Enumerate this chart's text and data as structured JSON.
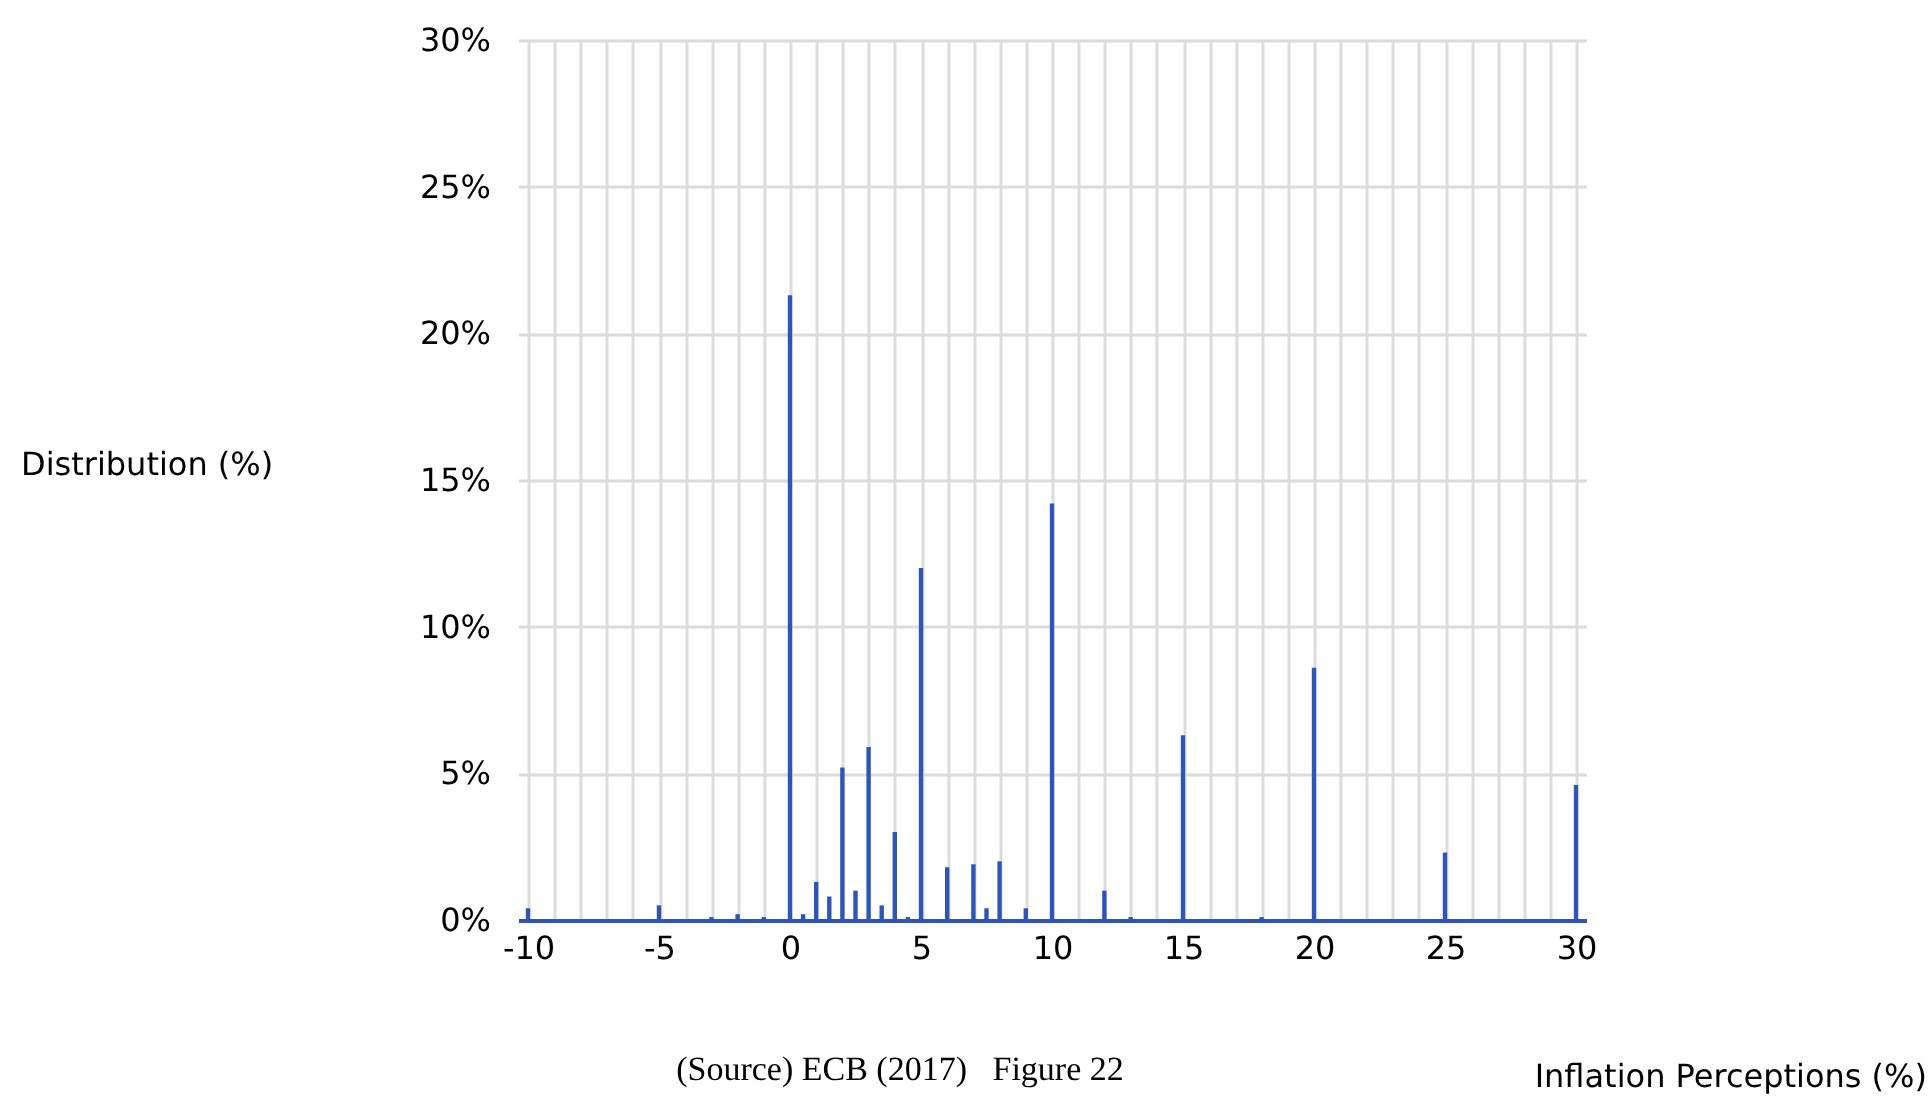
{
  "chart_data": {
    "type": "bar",
    "xlabel": "Inflation Perceptions (%)",
    "ylabel": "Distribution (%)",
    "annotations": [
      "(Source) ECB (2017)   Figure 22"
    ],
    "x": [
      -10,
      -5,
      -3,
      -2,
      -1,
      0,
      0.5,
      1,
      1.5,
      2,
      2.5,
      3,
      3.5,
      4,
      4.5,
      5,
      6,
      7,
      7.5,
      8,
      9,
      10,
      12,
      13,
      15,
      18,
      20,
      25,
      30
    ],
    "series": [
      {
        "color": "#2f55b5",
        "values": [
          0.4,
          0.5,
          0.1,
          0.2,
          0.1,
          21.3,
          0.2,
          1.3,
          0.8,
          5.2,
          1.0,
          5.9,
          0.5,
          3.0,
          0.1,
          12.0,
          1.8,
          1.9,
          0.4,
          2.0,
          0.4,
          14.2,
          1.0,
          0.1,
          6.3,
          0.1,
          8.6,
          2.3,
          4.6
        ]
      }
    ],
    "xlim": [
      -10,
      30
    ],
    "xticks": [
      -10,
      {
        "value": -9,
        "label": null
      },
      {
        "value": -8,
        "label": null
      },
      {
        "value": -7,
        "label": null
      },
      {
        "value": -6,
        "label": null
      },
      -5,
      {
        "value": -4,
        "label": null
      },
      {
        "value": -3,
        "label": null
      },
      {
        "value": -2,
        "label": null
      },
      {
        "value": -1,
        "label": null
      },
      0,
      {
        "value": 1,
        "label": null
      },
      {
        "value": 2,
        "label": null
      },
      {
        "value": 3,
        "label": null
      },
      {
        "value": 4,
        "label": null
      },
      5,
      {
        "value": 6,
        "label": null
      },
      {
        "value": 7,
        "label": null
      },
      {
        "value": 8,
        "label": null
      },
      {
        "value": 9,
        "label": null
      },
      10,
      {
        "value": 11,
        "label": null
      },
      {
        "value": 12,
        "label": null
      },
      {
        "value": 13,
        "label": null
      },
      {
        "value": 14,
        "label": null
      },
      15,
      {
        "value": 16,
        "label": null
      },
      {
        "value": 17,
        "label": null
      },
      {
        "value": 18,
        "label": null
      },
      {
        "value": 19,
        "label": null
      },
      20,
      {
        "value": 21,
        "label": null
      },
      {
        "value": 22,
        "label": null
      },
      {
        "value": 23,
        "label": null
      },
      {
        "value": 24,
        "label": null
      },
      25,
      {
        "value": 26,
        "label": null
      },
      {
        "value": 27,
        "label": null
      },
      {
        "value": 28,
        "label": null
      },
      {
        "value": 29,
        "label": null
      },
      30
    ],
    "ylim": [
      0,
      30
    ],
    "yticks": [
      {
        "value": 0,
        "label": "0%"
      },
      {
        "value": 5,
        "label": "5%"
      },
      {
        "value": 10,
        "label": "10%"
      },
      {
        "value": 15,
        "label": "15%"
      },
      {
        "value": 20,
        "label": "20%"
      },
      {
        "value": 25,
        "label": "25%"
      },
      {
        "value": 30,
        "label": "30%"
      }
    ],
    "grid": true,
    "legend": false
  }
}
